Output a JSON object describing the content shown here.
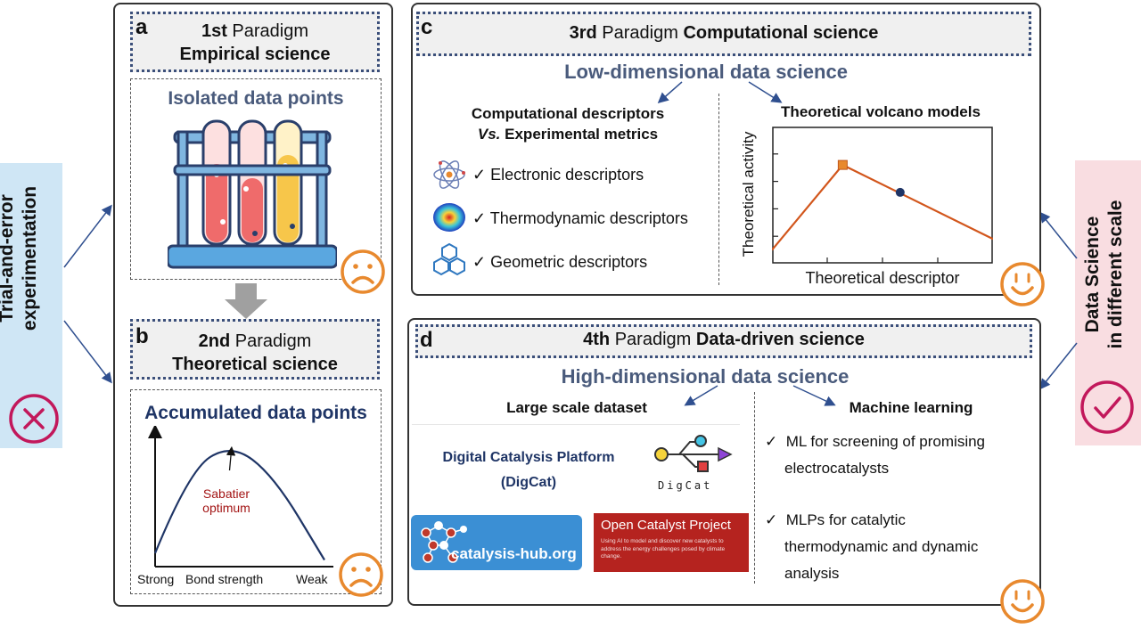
{
  "left_strip": {
    "text_line1": "Trial-and-error",
    "text_line2": "experimentation"
  },
  "right_strip": {
    "text_line1": "Data Science",
    "text_line2": "in different scale"
  },
  "panel_a": {
    "letter": "a",
    "ordinal": "1st",
    "paradigm": "Paradigm",
    "subtitle": "Empirical science",
    "box_title": "Isolated data points"
  },
  "panel_b": {
    "letter": "b",
    "ordinal": "2nd",
    "paradigm": "Paradigm",
    "subtitle": "Theoretical science",
    "box_title": "Accumulated data points",
    "curve_label_line1": "Sabatier",
    "curve_label_line2": "optimum",
    "x_left": "Strong",
    "x_mid": "Bond strength",
    "x_right": "Weak"
  },
  "panel_c": {
    "letter": "c",
    "ordinal": "3rd",
    "paradigm": "Paradigm",
    "field": "Computational science",
    "heading": "Low-dimensional data science",
    "left_title_line1": "Computational descriptors",
    "left_title_vs": "Vs.",
    "left_title_line2_rest": "Experimental metrics",
    "descriptors": [
      "Electronic descriptors",
      "Thermodynamic descriptors",
      "Geometric descriptors"
    ],
    "right_title": "Theoretical volcano models",
    "y_label": "Theoretical activity",
    "x_label": "Theoretical descriptor"
  },
  "panel_d": {
    "letter": "d",
    "ordinal": "4th",
    "paradigm": "Paradigm",
    "field": "Data-driven science",
    "heading": "High-dimensional data science",
    "left_title": "Large scale dataset",
    "digcat_line1": "Digital Catalysis Platform",
    "digcat_line2": "(DigCat)",
    "digcat_logo_text": "DigCat",
    "hub_logo_text": "catalysis-hub.org",
    "ocp_title": "Open Catalyst Project",
    "ocp_body": "Using AI to model and discover new catalysts to address the energy challenges posed by climate change.",
    "right_title": "Machine learning",
    "ml_items": [
      {
        "line1": "ML for screening of promising",
        "line2": "electrocatalysts"
      },
      {
        "line1": "MLPs for catalytic",
        "line2": "thermodynamic and dynamic",
        "line3": "analysis"
      }
    ]
  },
  "colors": {
    "navy": "#1f3566",
    "orange": "#e8892e",
    "red_x": "#c2185b",
    "strip_left": "#cfe6f5",
    "strip_right": "#f9dde1"
  },
  "chart_data": [
    {
      "type": "line",
      "title": "",
      "xlabel": "Theoretical descriptor",
      "ylabel": "Theoretical activity",
      "series": [
        {
          "name": "volcano",
          "x": [
            0,
            0.32,
            1.0
          ],
          "y": [
            0.1,
            0.72,
            0.18
          ]
        }
      ],
      "markers": [
        {
          "name": "peak",
          "shape": "square",
          "x": 0.32,
          "y": 0.72
        },
        {
          "name": "point",
          "shape": "circle",
          "x": 0.58,
          "y": 0.52
        }
      ],
      "xlim": [
        0,
        1
      ],
      "ylim": [
        0,
        1
      ]
    },
    {
      "type": "line",
      "title": "Accumulated data points",
      "xlabel": "Bond strength",
      "ylabel": "",
      "x_tick_labels": [
        "Strong",
        "Weak"
      ],
      "series": [
        {
          "name": "sabatier",
          "x": [
            0,
            0.2,
            0.45,
            0.7,
            1.0
          ],
          "y": [
            0.1,
            0.72,
            0.92,
            0.68,
            0.05
          ]
        }
      ],
      "annotation": "Sabatier optimum",
      "xlim": [
        0,
        1
      ],
      "ylim": [
        0,
        1
      ]
    }
  ]
}
